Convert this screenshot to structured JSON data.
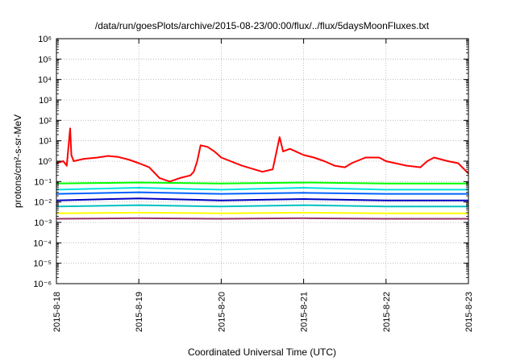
{
  "chart_data": {
    "type": "line",
    "title": "/data/run/goesPlots/archive/2015-08-23/00:00/flux/../flux/5daysMoonFluxes.txt",
    "xlabel": "Coordinated Universal Time (UTC)",
    "ylabel": "protons/cm²-s-sr-MeV",
    "x_scale": "time",
    "xlim": [
      "2015-08-18",
      "2015-08-23"
    ],
    "x_ticks": [
      "2015-8-18",
      "2015-8-19",
      "2015-8-20",
      "2015-8-21",
      "2015-8-22",
      "2015-8-23"
    ],
    "y_scale": "log",
    "ylim": [
      1e-06,
      1000000.0
    ],
    "y_ticks": [
      "10⁻⁶",
      "10⁻⁵",
      "10⁻⁴",
      "10⁻³",
      "10⁻²",
      "10⁻¹",
      "10⁰",
      "10¹",
      "10²",
      "10³",
      "10⁴",
      "10⁵",
      "10⁶"
    ],
    "grid": true,
    "series": [
      {
        "color": "#ff0000",
        "x": [
          "2015-08-18 00:00",
          "2015-08-18 02:00",
          "2015-08-18 03:00",
          "2015-08-18 03:30",
          "2015-08-18 04:00",
          "2015-08-18 04:20",
          "2015-08-18 05:00",
          "2015-08-18 08:00",
          "2015-08-18 12:00",
          "2015-08-18 15:00",
          "2015-08-18 18:00",
          "2015-08-18 21:00",
          "2015-08-19 00:00",
          "2015-08-19 03:00",
          "2015-08-19 06:00",
          "2015-08-19 09:00",
          "2015-08-19 12:00",
          "2015-08-19 15:00",
          "2015-08-19 16:00",
          "2015-08-19 17:00",
          "2015-08-19 18:00",
          "2015-08-19 20:00",
          "2015-08-19 22:00",
          "2015-08-20 00:00",
          "2015-08-20 06:00",
          "2015-08-20 12:00",
          "2015-08-20 15:00",
          "2015-08-20 17:00",
          "2015-08-20 18:00",
          "2015-08-20 20:00",
          "2015-08-21 00:00",
          "2015-08-21 03:00",
          "2015-08-21 06:00",
          "2015-08-21 09:00",
          "2015-08-21 12:00",
          "2015-08-21 14:00",
          "2015-08-21 18:00",
          "2015-08-21 22:00",
          "2015-08-22 00:00",
          "2015-08-22 06:00",
          "2015-08-22 10:00",
          "2015-08-22 12:00",
          "2015-08-22 14:00",
          "2015-08-22 18:00",
          "2015-08-22 21:00",
          "2015-08-23 00:00"
        ],
        "y": [
          0.8,
          1.0,
          0.6,
          5.0,
          40,
          2.0,
          1.0,
          1.3,
          1.5,
          1.8,
          1.6,
          1.2,
          0.8,
          0.5,
          0.15,
          0.1,
          0.15,
          0.2,
          0.3,
          1.0,
          6.0,
          5.0,
          3.0,
          1.5,
          0.6,
          0.3,
          0.4,
          15,
          3.0,
          4.0,
          2.0,
          1.5,
          1.0,
          0.6,
          0.5,
          0.8,
          1.5,
          1.5,
          1.0,
          0.6,
          0.5,
          1.0,
          1.5,
          1.0,
          0.8,
          0.25
        ]
      },
      {
        "color": "#00ff00",
        "x": [
          "2015-08-18 00:00",
          "2015-08-19 00:00",
          "2015-08-20 00:00",
          "2015-08-21 00:00",
          "2015-08-22 00:00",
          "2015-08-23 00:00"
        ],
        "y": [
          0.08,
          0.09,
          0.08,
          0.09,
          0.08,
          0.08
        ]
      },
      {
        "color": "#00e0e0",
        "x": [
          "2015-08-18 00:00",
          "2015-08-19 00:00",
          "2015-08-20 00:00",
          "2015-08-21 00:00",
          "2015-08-22 00:00",
          "2015-08-23 00:00"
        ],
        "y": [
          0.04,
          0.05,
          0.04,
          0.05,
          0.04,
          0.04
        ]
      },
      {
        "color": "#0060ff",
        "x": [
          "2015-08-18 00:00",
          "2015-08-19 00:00",
          "2015-08-20 00:00",
          "2015-08-21 00:00",
          "2015-08-22 00:00",
          "2015-08-23 00:00"
        ],
        "y": [
          0.025,
          0.03,
          0.025,
          0.028,
          0.025,
          0.025
        ]
      },
      {
        "color": "#0000c0",
        "x": [
          "2015-08-18 00:00",
          "2015-08-19 00:00",
          "2015-08-20 00:00",
          "2015-08-21 00:00",
          "2015-08-22 00:00",
          "2015-08-23 00:00"
        ],
        "y": [
          0.012,
          0.015,
          0.012,
          0.014,
          0.012,
          0.012
        ]
      },
      {
        "color": "#00c0c0",
        "x": [
          "2015-08-18 00:00",
          "2015-08-19 00:00",
          "2015-08-20 00:00",
          "2015-08-21 00:00",
          "2015-08-22 00:00",
          "2015-08-23 00:00"
        ],
        "y": [
          0.006,
          0.007,
          0.006,
          0.007,
          0.006,
          0.006
        ]
      },
      {
        "color": "#ffff00",
        "x": [
          "2015-08-18 00:00",
          "2015-08-19 00:00",
          "2015-08-20 00:00",
          "2015-08-21 00:00",
          "2015-08-22 00:00",
          "2015-08-23 00:00"
        ],
        "y": [
          0.0028,
          0.003,
          0.0028,
          0.003,
          0.0028,
          0.0028
        ]
      },
      {
        "color": "#993366",
        "x": [
          "2015-08-18 00:00",
          "2015-08-19 00:00",
          "2015-08-20 00:00",
          "2015-08-21 00:00",
          "2015-08-22 00:00",
          "2015-08-23 00:00"
        ],
        "y": [
          0.0015,
          0.0016,
          0.0015,
          0.0016,
          0.0015,
          0.0015
        ]
      }
    ]
  }
}
